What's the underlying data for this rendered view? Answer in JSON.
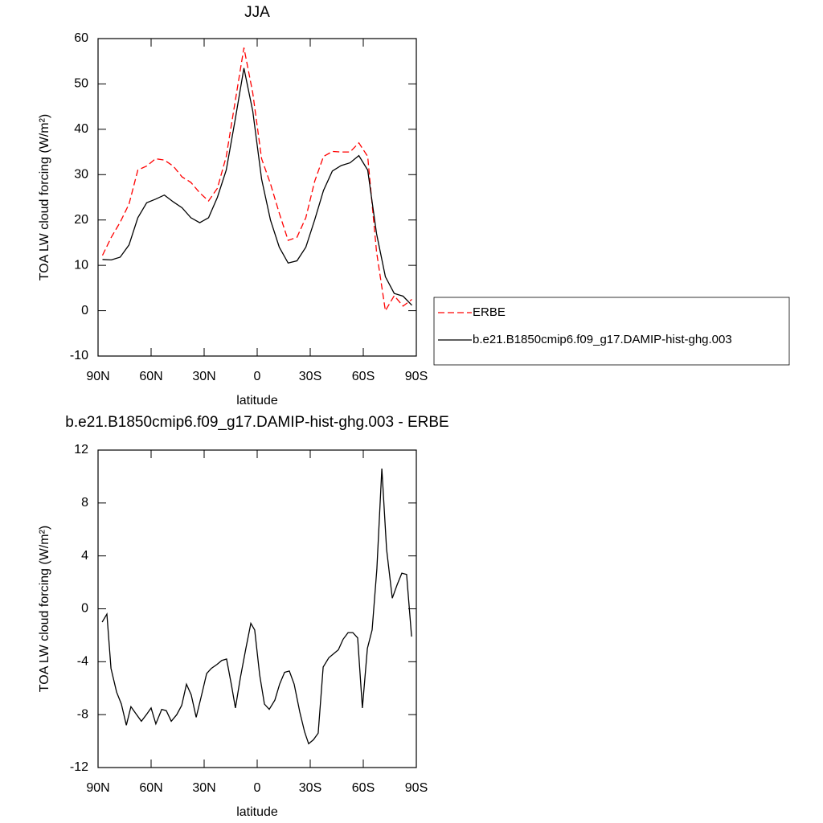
{
  "chart_data": [
    {
      "type": "line",
      "title": "JJA",
      "xlabel": "latitude",
      "ylabel": "TOA LW cloud forcing (W/m²)",
      "x": [
        87.5,
        82.5,
        77.5,
        72.5,
        67.5,
        62.5,
        57.5,
        52.5,
        47.5,
        42.5,
        37.5,
        32.5,
        27.5,
        22.5,
        17.5,
        12.5,
        7.5,
        2.5,
        -2.5,
        -7.5,
        -12.5,
        -17.5,
        -22.5,
        -27.5,
        -32.5,
        -37.5,
        -42.5,
        -47.5,
        -52.5,
        -57.5,
        -62.5,
        -67.5,
        -72.5,
        -77.5,
        -82.5,
        -87.5
      ],
      "series": [
        {
          "name": "ERBE",
          "color": "#ff0000",
          "line_style": "dashed",
          "values": [
            12.2,
            16.2,
            19.5,
            23.5,
            31,
            31.9,
            33.5,
            33.2,
            31.9,
            29.5,
            28.3,
            26,
            24.2,
            27,
            34,
            46,
            58,
            48,
            33.5,
            28,
            21.5,
            15.5,
            16.2,
            20.5,
            28.5,
            34,
            35.1,
            35,
            35,
            37,
            34,
            13,
            0,
            3.3,
            1,
            2.5
          ]
        },
        {
          "name": "b.e21.B1850cmip6.f09_g17.DAMIP-hist-ghg.003",
          "color": "#000000",
          "line_style": "solid",
          "values": [
            11.3,
            11.2,
            11.8,
            14.5,
            20.5,
            23.8,
            24.6,
            25.5,
            24,
            22.7,
            20.5,
            19.4,
            20.5,
            25,
            31,
            42,
            53.5,
            44,
            29,
            20,
            14,
            10.5,
            11,
            14,
            20,
            26.5,
            30.8,
            32,
            32.6,
            34.2,
            31,
            17,
            7.5,
            3.8,
            3.2,
            1.2
          ]
        }
      ],
      "xlim": [
        90,
        -90
      ],
      "xticks": [
        {
          "value": 90,
          "label": "90N"
        },
        {
          "value": 60,
          "label": "60N"
        },
        {
          "value": 30,
          "label": "30N"
        },
        0,
        {
          "value": -30,
          "label": "30S"
        },
        {
          "value": -60,
          "label": "60S"
        },
        {
          "value": -90,
          "label": "90S"
        }
      ],
      "ylim": [
        -10,
        60
      ],
      "yticks": [
        -10,
        0,
        10,
        20,
        30,
        40,
        50,
        60
      ],
      "legend": "right"
    },
    {
      "type": "line",
      "title": "b.e21.B1850cmip6.f09_g17.DAMIP-hist-ghg.003 - ERBE",
      "xlabel": "latitude",
      "ylabel": "TOA LW cloud forcing (W/m²)",
      "x": [
        87.7,
        85,
        82.7,
        79.5,
        76.8,
        74,
        71.4,
        68.2,
        65.5,
        62.7,
        60,
        57.3,
        54,
        51.4,
        48.6,
        45.5,
        42.7,
        40,
        37.3,
        34.5,
        31.4,
        28.6,
        25.9,
        22.7,
        20,
        17.3,
        14.5,
        12.3,
        9.5,
        6.4,
        3.6,
        1.4,
        -1.4,
        -4.1,
        -6.8,
        -10,
        -12.7,
        -15.5,
        -18.2,
        -20.9,
        -24.1,
        -26.8,
        -29.1,
        -31.8,
        -34.5,
        -37.3,
        -40.5,
        -43.2,
        -45.9,
        -48.6,
        -51.4,
        -54.1,
        -56.8,
        -59.5,
        -62.3,
        -65,
        -67.7,
        -70.5,
        -73.2,
        -76.4,
        -79.1,
        -81.8,
        -84.5,
        -87.3
      ],
      "series": [
        {
          "name": null,
          "color": "#000000",
          "line_style": "solid",
          "values": [
            -1.0,
            -0.4,
            -4.5,
            -6.3,
            -7.2,
            -8.8,
            -7.4,
            -8,
            -8.5,
            -8,
            -7.5,
            -8.7,
            -7.6,
            -7.7,
            -8.5,
            -8,
            -7.3,
            -5.7,
            -6.5,
            -8.2,
            -6.5,
            -4.9,
            -4.5,
            -4.2,
            -3.9,
            -3.8,
            -5.8,
            -7.5,
            -5.2,
            -3,
            -1.1,
            -1.6,
            -5,
            -7.2,
            -7.6,
            -6.9,
            -5.7,
            -4.8,
            -4.7,
            -5.7,
            -7.8,
            -9.3,
            -10.2,
            -9.9,
            -9.4,
            -4.4,
            -3.7,
            -3.4,
            -3.1,
            -2.3,
            -1.8,
            -1.8,
            -2.2,
            -7.5,
            -3,
            -1.6,
            3,
            10.6,
            4.5,
            0.8,
            1.8,
            2.7,
            2.6,
            -2.1
          ]
        }
      ],
      "xlim": [
        90,
        -90
      ],
      "xticks": [
        {
          "value": 90,
          "label": "90N"
        },
        {
          "value": 60,
          "label": "60N"
        },
        {
          "value": 30,
          "label": "30N"
        },
        0,
        {
          "value": -30,
          "label": "30S"
        },
        {
          "value": -60,
          "label": "60S"
        },
        {
          "value": -90,
          "label": "90S"
        }
      ],
      "ylim": [
        -12,
        12
      ],
      "yticks": [
        -12,
        -8,
        -4,
        0,
        4,
        8,
        12
      ]
    }
  ]
}
